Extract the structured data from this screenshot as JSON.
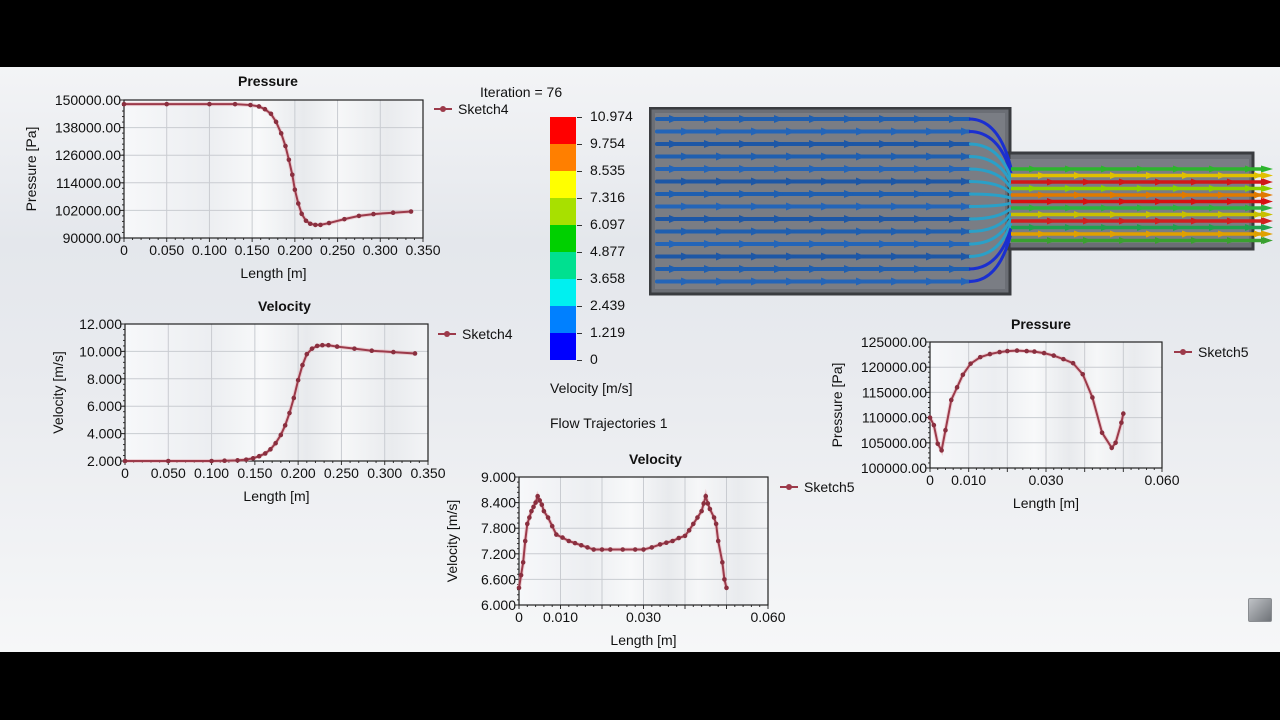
{
  "iteration_label": "Iteration = 76",
  "colorbar": {
    "unit_label": "Velocity [m/s]",
    "ticks": [
      "10.974",
      "9.754",
      "8.535",
      "7.316",
      "6.097",
      "4.877",
      "3.658",
      "2.439",
      "1.219",
      "0"
    ],
    "colors": [
      "#ff0000",
      "#ff7f00",
      "#ffff00",
      "#a8e000",
      "#00d000",
      "#00e090",
      "#00f0f0",
      "#0080ff",
      "#0000ff"
    ]
  },
  "flow_label": "Flow Trajectories 1",
  "nav_icon": "view-cube-icon",
  "chart_data": [
    {
      "id": "pressure-sketch4",
      "type": "line",
      "title": "Pressure",
      "xlabel": "Length [m]",
      "ylabel": "Pressure [Pa]",
      "legend": [
        "Sketch4"
      ],
      "xlim": [
        0,
        0.35
      ],
      "ylim": [
        90000,
        150000
      ],
      "xticks": [
        "0",
        "0.050",
        "0.100",
        "0.150",
        "0.200",
        "0.250",
        "0.300",
        "0.350"
      ],
      "yticks": [
        "150000.00",
        "138000.00",
        "126000.00",
        "114000.00",
        "102000.00",
        "90000.00"
      ],
      "grid": true,
      "series": [
        {
          "name": "Sketch4",
          "x": [
            0,
            0.05,
            0.1,
            0.13,
            0.148,
            0.158,
            0.165,
            0.172,
            0.178,
            0.184,
            0.189,
            0.193,
            0.197,
            0.2,
            0.204,
            0.208,
            0.213,
            0.218,
            0.224,
            0.23,
            0.24,
            0.258,
            0.275,
            0.292,
            0.315,
            0.336
          ],
          "y": [
            148200,
            148200,
            148200,
            148200,
            147800,
            147200,
            146000,
            144000,
            140500,
            135500,
            130000,
            124000,
            117500,
            111000,
            105000,
            100500,
            97500,
            96200,
            95700,
            95700,
            96500,
            98200,
            99600,
            100400,
            101000,
            101500
          ]
        }
      ]
    },
    {
      "id": "velocity-sketch4",
      "type": "line",
      "title": "Velocity",
      "xlabel": "Length [m]",
      "ylabel": "Velocity [m/s]",
      "legend": [
        "Sketch4"
      ],
      "xlim": [
        0,
        0.35
      ],
      "ylim": [
        2,
        12
      ],
      "xticks": [
        "0",
        "0.050",
        "0.100",
        "0.150",
        "0.200",
        "0.250",
        "0.300",
        "0.350"
      ],
      "yticks": [
        "12.000",
        "10.000",
        "8.000",
        "6.000",
        "4.000",
        "2.000"
      ],
      "grid": true,
      "series": [
        {
          "name": "Sketch4",
          "x": [
            0,
            0.05,
            0.1,
            0.115,
            0.13,
            0.14,
            0.148,
            0.155,
            0.162,
            0.168,
            0.174,
            0.18,
            0.185,
            0.19,
            0.195,
            0.2,
            0.205,
            0.21,
            0.216,
            0.222,
            0.228,
            0.235,
            0.245,
            0.265,
            0.285,
            0.31,
            0.335
          ],
          "y": [
            2.0,
            2.0,
            2.0,
            2.02,
            2.05,
            2.1,
            2.2,
            2.35,
            2.55,
            2.85,
            3.3,
            3.9,
            4.6,
            5.5,
            6.6,
            7.9,
            9.0,
            9.8,
            10.2,
            10.4,
            10.45,
            10.45,
            10.35,
            10.2,
            10.05,
            9.95,
            9.85
          ]
        }
      ]
    },
    {
      "id": "velocity-sketch5",
      "type": "line",
      "title": "Velocity",
      "xlabel": "Length [m]",
      "ylabel": "Velocity [m/s]",
      "legend": [
        "Sketch5"
      ],
      "xlim": [
        0,
        0.06
      ],
      "ylim": [
        6,
        9
      ],
      "xticks": [
        "0",
        "0.010",
        "0.030",
        "0.060"
      ],
      "xtick_values": [
        0,
        0.01,
        0.03,
        0.06
      ],
      "yticks": [
        "9.000",
        "8.400",
        "7.800",
        "7.200",
        "6.600",
        "6.000"
      ],
      "grid": true,
      "series": [
        {
          "name": "Sketch5",
          "x": [
            0,
            0.0005,
            0.001,
            0.0015,
            0.002,
            0.0025,
            0.003,
            0.0035,
            0.004,
            0.0045,
            0.005,
            0.0055,
            0.006,
            0.007,
            0.008,
            0.009,
            0.0105,
            0.012,
            0.0135,
            0.015,
            0.0165,
            0.018,
            0.02,
            0.022,
            0.025,
            0.028,
            0.03,
            0.032,
            0.034,
            0.0355,
            0.037,
            0.0385,
            0.04,
            0.041,
            0.042,
            0.043,
            0.044,
            0.0445,
            0.045,
            0.0455,
            0.046,
            0.047,
            0.0475,
            0.048,
            0.049,
            0.0495,
            0.05
          ],
          "y": [
            6.4,
            6.7,
            7.0,
            7.5,
            7.9,
            8.05,
            8.2,
            8.3,
            8.4,
            8.55,
            8.45,
            8.35,
            8.2,
            8.05,
            7.85,
            7.65,
            7.58,
            7.5,
            7.45,
            7.4,
            7.35,
            7.3,
            7.3,
            7.3,
            7.3,
            7.3,
            7.3,
            7.35,
            7.42,
            7.46,
            7.5,
            7.57,
            7.62,
            7.75,
            7.9,
            8.05,
            8.2,
            8.38,
            8.55,
            8.38,
            8.25,
            8.05,
            7.9,
            7.5,
            7.0,
            6.6,
            6.4
          ]
        }
      ]
    },
    {
      "id": "pressure-sketch5",
      "type": "line",
      "title": "Pressure",
      "xlabel": "Length [m]",
      "ylabel": "Pressure [Pa]",
      "legend": [
        "Sketch5"
      ],
      "xlim": [
        0,
        0.06
      ],
      "ylim": [
        100000,
        125000
      ],
      "xticks": [
        "0",
        "0.010",
        "0.030",
        "0.060"
      ],
      "xtick_values": [
        0,
        0.01,
        0.03,
        0.06
      ],
      "yticks": [
        "125000.00",
        "120000.00",
        "115000.00",
        "110000.00",
        "105000.00",
        "100000.00"
      ],
      "grid": true,
      "series": [
        {
          "name": "Sketch5",
          "x": [
            0,
            0.001,
            0.002,
            0.003,
            0.004,
            0.0055,
            0.007,
            0.0085,
            0.0105,
            0.013,
            0.0155,
            0.018,
            0.02,
            0.0225,
            0.025,
            0.027,
            0.0295,
            0.032,
            0.0345,
            0.037,
            0.0395,
            0.042,
            0.0445,
            0.047,
            0.048,
            0.0495,
            0.05
          ],
          "y": [
            110000,
            108500,
            104800,
            103500,
            107500,
            113500,
            116000,
            118500,
            120700,
            122000,
            122600,
            123000,
            123200,
            123300,
            123200,
            123100,
            122800,
            122300,
            121600,
            120800,
            118600,
            114000,
            107000,
            104000,
            105000,
            109000,
            110800
          ]
        }
      ]
    }
  ]
}
